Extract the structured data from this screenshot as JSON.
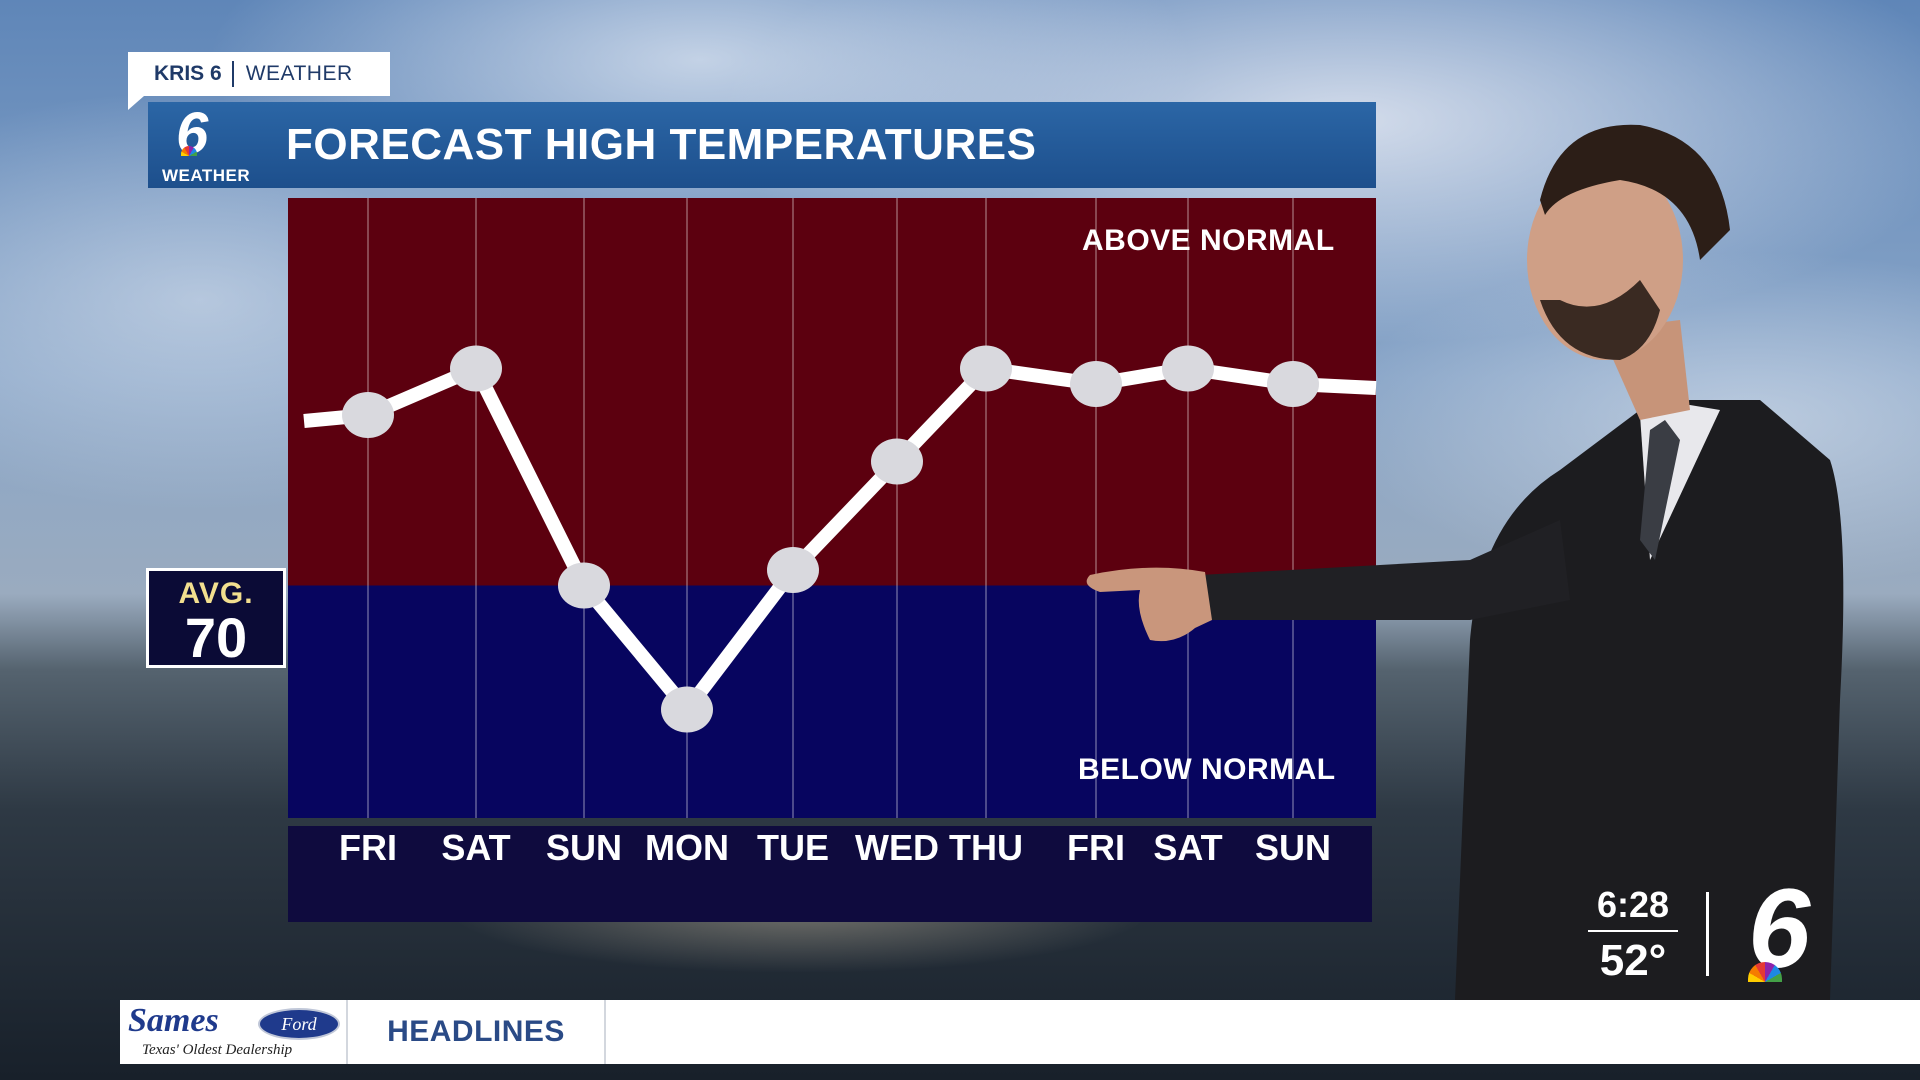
{
  "station": {
    "brand": "KRIS 6",
    "section": "WEATHER"
  },
  "title_bar": {
    "logo_number": "6",
    "logo_word": "WEATHER",
    "title": "FORECAST HIGH TEMPERATURES"
  },
  "avg_box": {
    "title": "AVG.",
    "value": "70"
  },
  "colors": {
    "above_band": "#5c000f",
    "below_band": "#07055f",
    "line": "#ffffff",
    "title_bar": "#2b66a6"
  },
  "chart_data": {
    "type": "line",
    "title": "FORECAST HIGH TEMPERATURES",
    "categories": [
      "FRI",
      "SAT",
      "SUN",
      "MON",
      "TUE",
      "WED",
      "THU",
      "FRI",
      "SAT",
      "SUN"
    ],
    "series": [
      {
        "values": [
          81,
          84,
          70,
          62,
          71,
          78,
          84,
          83,
          84,
          83
        ]
      }
    ],
    "normal": 70,
    "ylim": [
      55,
      95
    ],
    "band_labels": {
      "above": "ABOVE NORMAL",
      "below": "BELOW NORMAL"
    },
    "grid": true
  },
  "bug": {
    "time": "6:28",
    "temp": "52°",
    "logo": "6"
  },
  "ticker": {
    "sponsor_name": "Sames",
    "sponsor_brand": "Ford",
    "sponsor_tagline": "Texas' Oldest Dealership",
    "label": "HEADLINES"
  }
}
